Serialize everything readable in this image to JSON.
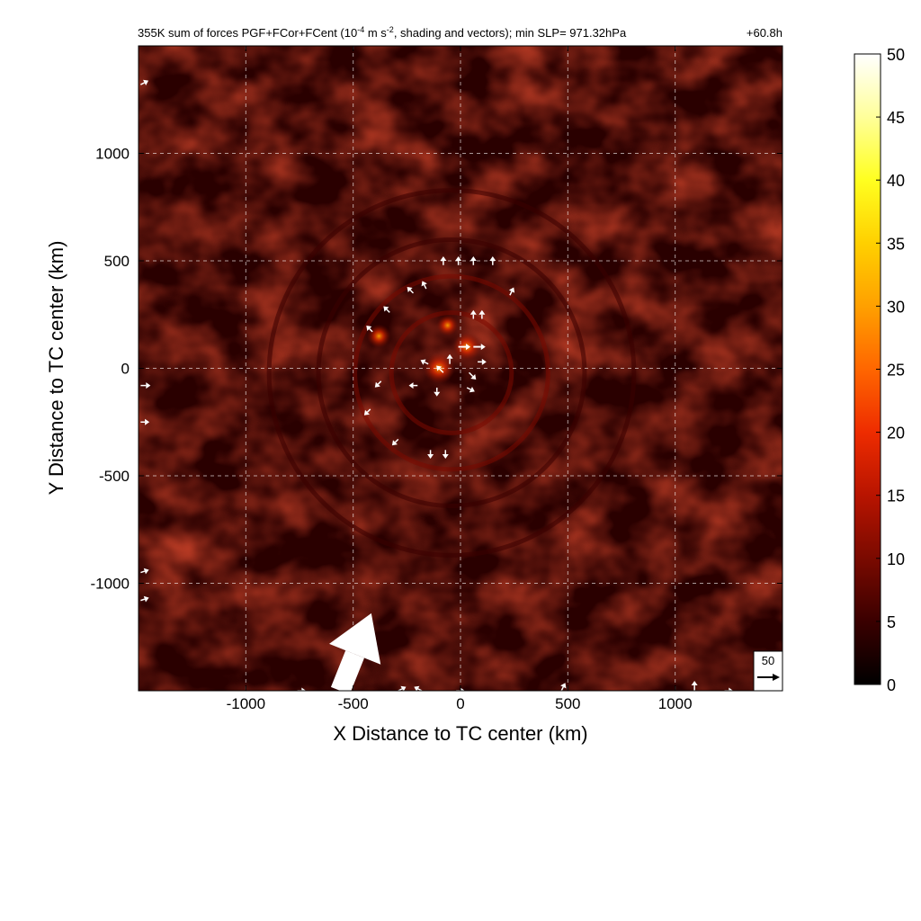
{
  "chart_data": {
    "type": "heatmap",
    "title_main": "355K sum of forces PGF+FCor+FCent (10",
    "title_sup1": "-4",
    "title_mid": " m s",
    "title_sup2": "-2",
    "title_end": ", shading and vectors); min SLP= 971.32hPa",
    "time_label": "+60.8h",
    "xlabel": "X Distance to TC center (km)",
    "ylabel": "Y Distance to TC center (km)",
    "xlim": [
      -1500,
      1500
    ],
    "ylim": [
      -1500,
      1500
    ],
    "xticks": [
      -1000,
      -500,
      0,
      500,
      1000
    ],
    "yticks": [
      -1000,
      -500,
      0,
      500,
      1000
    ],
    "xtick_labels": [
      "-1000",
      "-500",
      "0",
      "500",
      "1000"
    ],
    "ytick_labels": [
      "-1000",
      "-500",
      "0",
      "500",
      "1000"
    ],
    "grid": true,
    "colorbar": {
      "min": 0,
      "max": 50,
      "ticks": [
        0,
        5,
        10,
        15,
        20,
        25,
        30,
        35,
        40,
        45,
        50
      ],
      "tick_labels": [
        "0",
        "5",
        "10",
        "15",
        "20",
        "25",
        "30",
        "35",
        "40",
        "45",
        "50"
      ],
      "colors": [
        "#000000",
        "#3a0000",
        "#7a0a00",
        "#b81400",
        "#ee2c00",
        "#ff6600",
        "#ffa000",
        "#ffd000",
        "#ffff20",
        "#ffff9a",
        "#ffffff"
      ]
    },
    "reference_vector": {
      "label": "50",
      "magnitude": 50
    },
    "vector_color": "#ffffff",
    "rings": [
      {
        "radius_km": 450,
        "strength": 10
      },
      {
        "radius_km": 280,
        "strength": 12
      },
      {
        "radius_km": 620,
        "strength": 6
      },
      {
        "radius_km": 850,
        "strength": 5
      }
    ],
    "hot_spots": [
      {
        "x": -100,
        "y": 0,
        "value": 28
      },
      {
        "x": 30,
        "y": 100,
        "value": 24
      },
      {
        "x": -380,
        "y": 150,
        "value": 18
      },
      {
        "x": -60,
        "y": 200,
        "value": 15
      }
    ],
    "vectors": [
      {
        "x": -560,
        "y": -1500,
        "u": 60,
        "v": 150,
        "mag": 140
      },
      {
        "x": -10,
        "y": 100,
        "u": 30,
        "v": 0,
        "mag": 12
      },
      {
        "x": 60,
        "y": 100,
        "u": 40,
        "v": 0,
        "mag": 12
      },
      {
        "x": -50,
        "y": 20,
        "u": 0,
        "v": 30,
        "mag": 8
      },
      {
        "x": -80,
        "y": -20,
        "u": -20,
        "v": 20,
        "mag": 8
      },
      {
        "x": 40,
        "y": -20,
        "u": 20,
        "v": -20,
        "mag": 8
      },
      {
        "x": -150,
        "y": 20,
        "u": -20,
        "v": 10,
        "mag": 6
      },
      {
        "x": -200,
        "y": -80,
        "u": -20,
        "v": 0,
        "mag": 6
      },
      {
        "x": -110,
        "y": -90,
        "u": 0,
        "v": -20,
        "mag": 6
      },
      {
        "x": 30,
        "y": -90,
        "u": 20,
        "v": -10,
        "mag": 6
      },
      {
        "x": 80,
        "y": 30,
        "u": 20,
        "v": 0,
        "mag": 6
      },
      {
        "x": 60,
        "y": 230,
        "u": 0,
        "v": 20,
        "mag": 6
      },
      {
        "x": 100,
        "y": 230,
        "u": 0,
        "v": 20,
        "mag": 6
      },
      {
        "x": -10,
        "y": 480,
        "u": 0,
        "v": 20,
        "mag": 6
      },
      {
        "x": 60,
        "y": 480,
        "u": 0,
        "v": 20,
        "mag": 6
      },
      {
        "x": 150,
        "y": 480,
        "u": 0,
        "v": 20,
        "mag": 6
      },
      {
        "x": -80,
        "y": 480,
        "u": 0,
        "v": 20,
        "mag": 6
      },
      {
        "x": -160,
        "y": 370,
        "u": -10,
        "v": 20,
        "mag": 6
      },
      {
        "x": -220,
        "y": 350,
        "u": -10,
        "v": 10,
        "mag": 6
      },
      {
        "x": -330,
        "y": 260,
        "u": -10,
        "v": 10,
        "mag": 6
      },
      {
        "x": -410,
        "y": 170,
        "u": -10,
        "v": 10,
        "mag": 6
      },
      {
        "x": -370,
        "y": -60,
        "u": -10,
        "v": -10,
        "mag": 6
      },
      {
        "x": -420,
        "y": -190,
        "u": -10,
        "v": -10,
        "mag": 6
      },
      {
        "x": -290,
        "y": -330,
        "u": -10,
        "v": -10,
        "mag": 6
      },
      {
        "x": -140,
        "y": -380,
        "u": 0,
        "v": -10,
        "mag": 6
      },
      {
        "x": -70,
        "y": -380,
        "u": 0,
        "v": -10,
        "mag": 6
      },
      {
        "x": 230,
        "y": 340,
        "u": 10,
        "v": 20,
        "mag": 6
      },
      {
        "x": -1490,
        "y": -80,
        "u": 40,
        "v": 0,
        "mag": 8
      },
      {
        "x": -1490,
        "y": -250,
        "u": 30,
        "v": 0,
        "mag": 6
      },
      {
        "x": -1490,
        "y": -950,
        "u": 30,
        "v": 10,
        "mag": 6
      },
      {
        "x": -1490,
        "y": -1080,
        "u": 30,
        "v": 10,
        "mag": 6
      },
      {
        "x": -1490,
        "y": 1320,
        "u": 20,
        "v": 10,
        "mag": 6
      },
      {
        "x": -290,
        "y": -1500,
        "u": 20,
        "v": 10,
        "mag": 6
      },
      {
        "x": -180,
        "y": -1500,
        "u": -20,
        "v": 10,
        "mag": 6
      },
      {
        "x": -20,
        "y": -1500,
        "u": 20,
        "v": 0,
        "mag": 6
      },
      {
        "x": 470,
        "y": -1500,
        "u": 10,
        "v": 20,
        "mag": 6
      },
      {
        "x": 1090,
        "y": -1500,
        "u": 0,
        "v": 30,
        "mag": 8
      },
      {
        "x": 1230,
        "y": -1500,
        "u": 20,
        "v": 0,
        "mag": 6
      },
      {
        "x": -760,
        "y": -1500,
        "u": 20,
        "v": 0,
        "mag": 6
      }
    ]
  }
}
